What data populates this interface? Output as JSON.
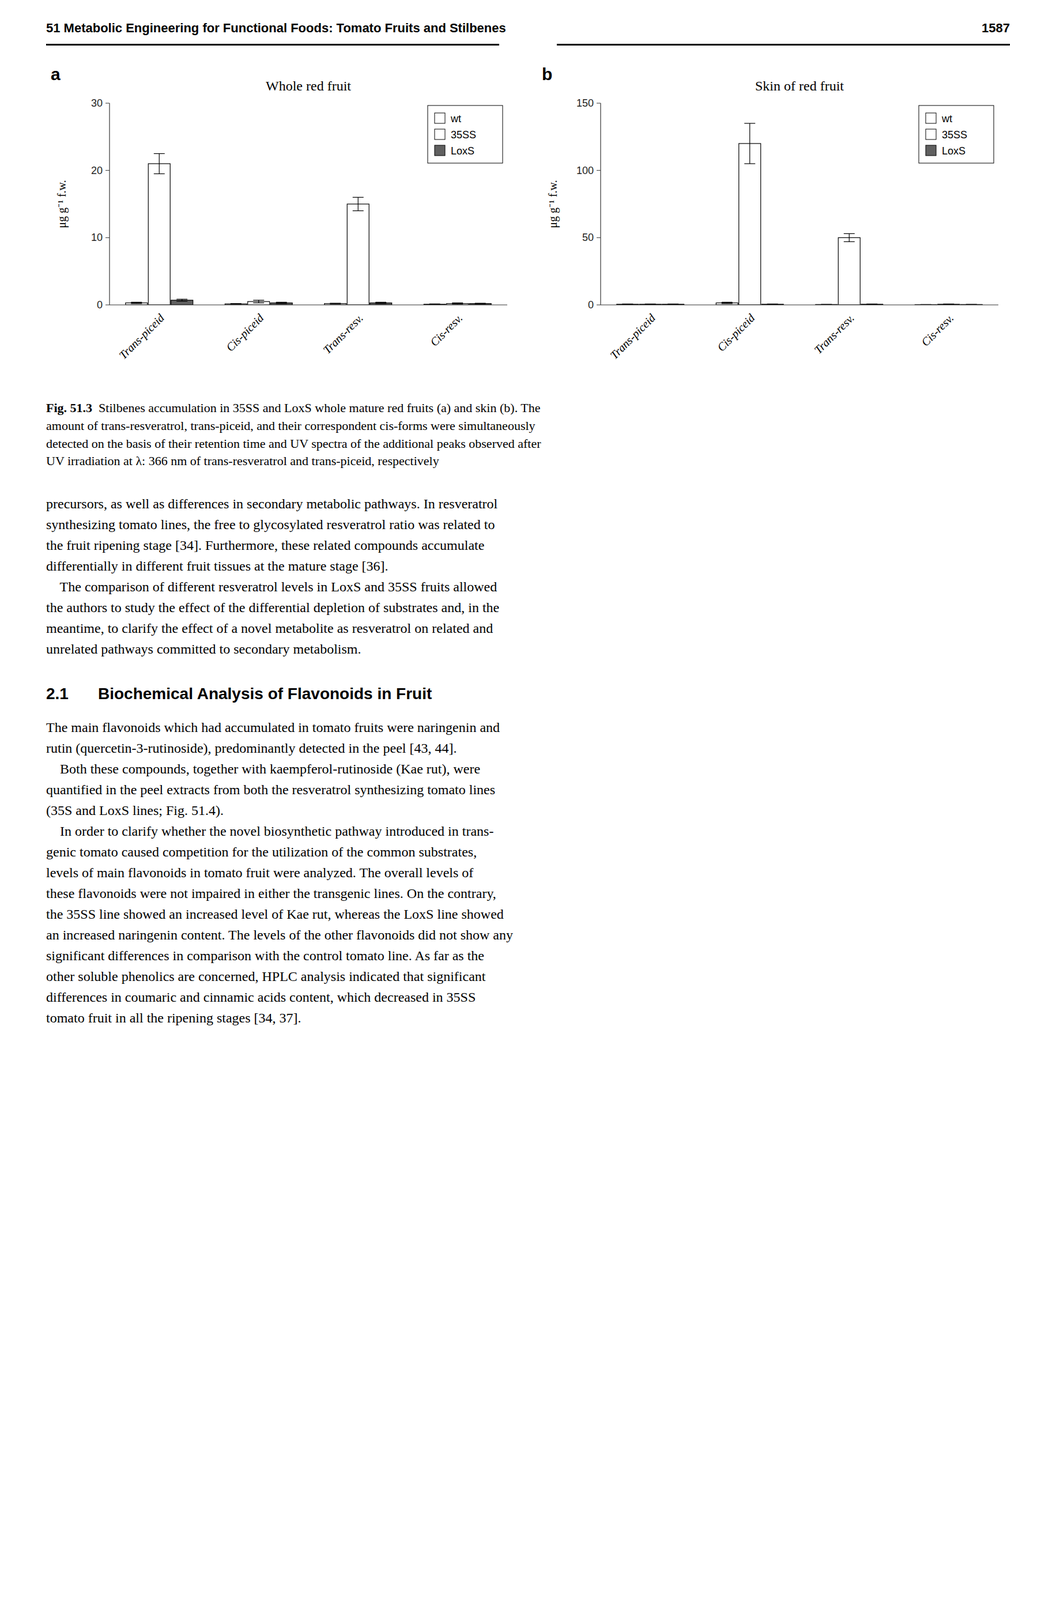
{
  "chart_data": [
    {
      "type": "bar",
      "title": "Whole red fruit",
      "annotations": [
        "a"
      ],
      "ylabel": "μg g⁻¹ f.w.",
      "categories": [
        "Trans-piceid",
        "Cis-piceid",
        "Trans-resv.",
        "Cis-resv."
      ],
      "series": [
        {
          "name": "wt",
          "color": "#ffffff",
          "values": [
            0.3,
            0.15,
            0.2,
            0.1
          ],
          "errors": [
            0.1,
            0.05,
            0.05,
            0.05
          ]
        },
        {
          "name": "35SS",
          "color": "#ffffff",
          "values": [
            21.0,
            0.5,
            15.0,
            0.2
          ],
          "errors": [
            1.5,
            0.2,
            1.0,
            0.1
          ]
        },
        {
          "name": "LoxS",
          "color": "#606060",
          "values": [
            0.7,
            0.3,
            0.3,
            0.2
          ],
          "errors": [
            0.15,
            0.1,
            0.1,
            0.05
          ]
        }
      ],
      "ylim": [
        0,
        30
      ],
      "yticks": [
        0,
        10,
        20,
        30
      ],
      "grid": false,
      "legend": "upper right"
    },
    {
      "type": "bar",
      "title": "Skin of red fruit",
      "annotations": [
        "b"
      ],
      "ylabel": "μg g⁻¹ f.w.",
      "categories": [
        "Trans-piceid",
        "Cis-piceid",
        "Trans-resv.",
        "Cis-resv."
      ],
      "series": [
        {
          "name": "wt",
          "color": "#ffffff",
          "values": [
            0.5,
            1.5,
            0.3,
            0.2
          ],
          "errors": [
            0.2,
            0.5,
            0.1,
            0.1
          ]
        },
        {
          "name": "35SS",
          "color": "#ffffff",
          "values": [
            0.5,
            120.0,
            50.0,
            0.5
          ],
          "errors": [
            0.2,
            15.0,
            3.0,
            0.2
          ]
        },
        {
          "name": "LoxS",
          "color": "#606060",
          "values": [
            0.5,
            0.5,
            0.5,
            0.3
          ],
          "errors": [
            0.2,
            0.2,
            0.2,
            0.1
          ]
        }
      ],
      "ylim": [
        0,
        150
      ],
      "yticks": [
        0,
        50,
        100,
        150
      ],
      "grid": false,
      "legend": "upper right"
    }
  ],
  "annotations": [
    "51   Metabolic Engineering for Functional Foods: Tomato Fruits and Stilbenes",
    "1587",
    "Fig. 51.3",
    "  Stilbenes accumulation in 35SS and LoxS whole mature red fruits (a) and skin (b). The\namount of trans-resveratrol, trans-piceid, and their correspondent cis-forms were simultaneously\ndetected on the basis of their retention time and UV spectra of the additional peaks observed after\nUV irradiation at λ: 366 nm of trans-resveratrol and trans-piceid, respectively",
    "precursors, as well as differences in secondary metabolic pathways. In resveratrol\nsynthesizing tomato lines, the free to glycosylated resveratrol ratio was related to\nthe fruit ripening stage [34]. Furthermore, these related compounds accumulate\ndifferentially in different fruit tissues at the mature stage [36].\n    The comparison of different resveratrol levels in LoxS and 35SS fruits allowed\nthe authors to study the effect of the differential depletion of substrates and, in the\nmeantime, to clarify the effect of a novel metabolite as resveratrol on related and\nunrelated pathways committed to secondary metabolism.",
    "2.1",
    "Biochemical Analysis of Flavonoids in Fruit",
    "The main flavonoids which had accumulated in tomato fruits were naringenin and\nrutin (quercetin-3-rutinoside), predominantly detected in the peel [43, 44].\n    Both these compounds, together with kaempferol-rutinoside (Kae rut), were\nquantified in the peel extracts from both the resveratrol synthesizing tomato lines\n(35S and LoxS lines; Fig. 51.4).\n    In order to clarify whether the novel biosynthetic pathway introduced in trans-\ngenic tomato caused competition for the utilization of the common substrates,\nlevels of main flavonoids in tomato fruit were analyzed. The overall levels of\nthese flavonoids were not impaired in either the transgenic lines. On the contrary,\nthe 35SS line showed an increased level of Kae rut, whereas the LoxS line showed\nan increased naringenin content. The levels of the other flavonoids did not show any\nsignificant differences in comparison with the control tomato line. As far as the\nother soluble phenolics are concerned, HPLC analysis indicated that significant\ndifferences in coumaric and cinnamic acids content, which decreased in 35SS\ntomato fruit in all the ripening stages [34, 37]."
  ]
}
